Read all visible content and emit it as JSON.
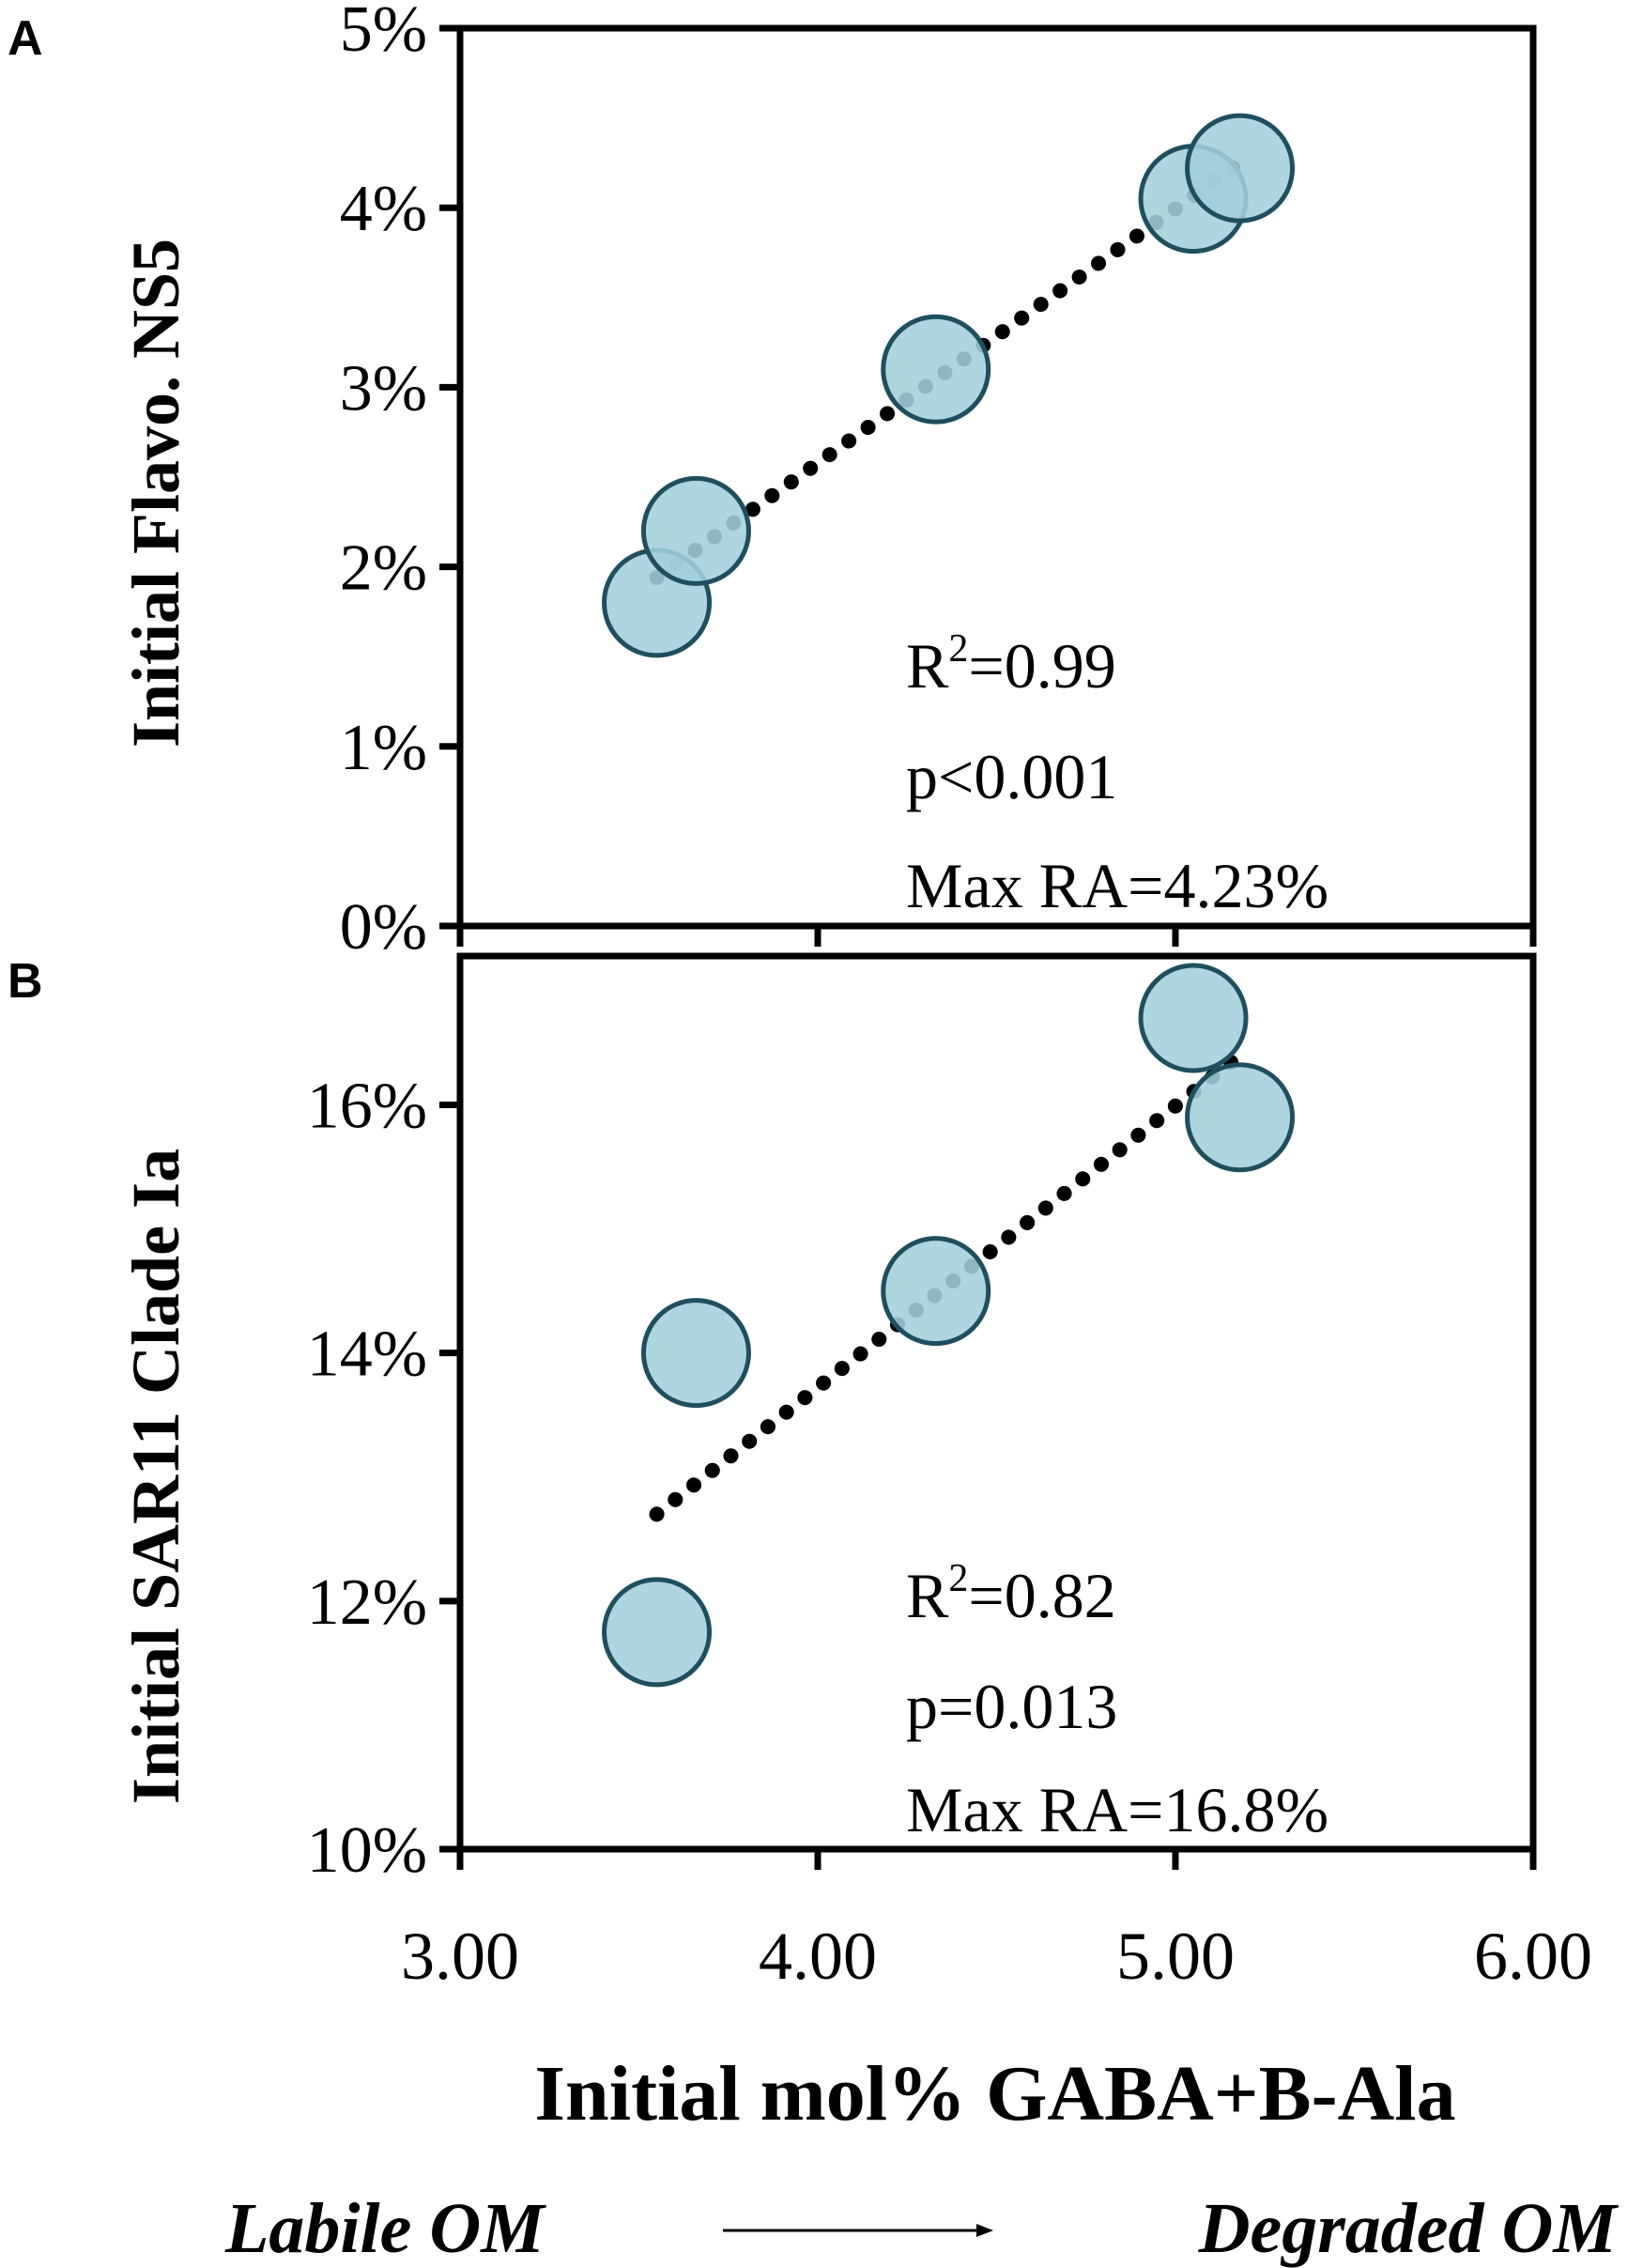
{
  "x_axis": {
    "label": "Initial mol% GABA+B-Ala",
    "ticks": [
      "3.00",
      "4.00",
      "5.00",
      "6.00"
    ],
    "range": [
      3.0,
      6.0
    ]
  },
  "annotation": {
    "left": "Labile OM",
    "right": "Degraded OM"
  },
  "colors": {
    "marker_fill": "#a3cfdc",
    "marker_stroke": "#1f4f5e",
    "trendline": "#000000",
    "axis": "#000000"
  },
  "chart_data": [
    {
      "type": "scatter",
      "panel_label": "A",
      "ylabel": "Initial Flavo. NS5",
      "ylim": [
        0,
        5
      ],
      "y_ticks": [
        "0%",
        "1%",
        "2%",
        "3%",
        "4%",
        "5%"
      ],
      "y_unit": "%",
      "x": [
        3.55,
        3.66,
        4.33,
        5.05,
        5.18
      ],
      "y": [
        1.8,
        2.2,
        3.1,
        4.05,
        4.22
      ],
      "trendline": {
        "style": "dotted",
        "x": [
          3.55,
          5.18
        ],
        "y": [
          1.94,
          4.25
        ]
      },
      "stats": {
        "r2_prefix": "R",
        "r2_sup": "2",
        "r2_value": "=0.99",
        "p": "p<0.001",
        "max_ra": "Max RA=4.23%"
      }
    },
    {
      "type": "scatter",
      "panel_label": "B",
      "ylabel": "Initial SAR11  Clade Ia",
      "ylim": [
        10,
        17.2
      ],
      "y_ticks": [
        "10%",
        "12%",
        "14%",
        "16%"
      ],
      "y_unit": "%",
      "x": [
        3.55,
        3.66,
        4.33,
        5.05,
        5.18
      ],
      "y": [
        11.75,
        14.0,
        14.5,
        16.7,
        15.9
      ],
      "trendline": {
        "style": "dotted",
        "x": [
          3.55,
          5.18
        ],
        "y": [
          12.7,
          16.4
        ]
      },
      "stats": {
        "r2_prefix": "R",
        "r2_sup": "2",
        "r2_value": "=0.82",
        "p": "p=0.013",
        "max_ra": "Max RA=16.8%"
      }
    }
  ]
}
